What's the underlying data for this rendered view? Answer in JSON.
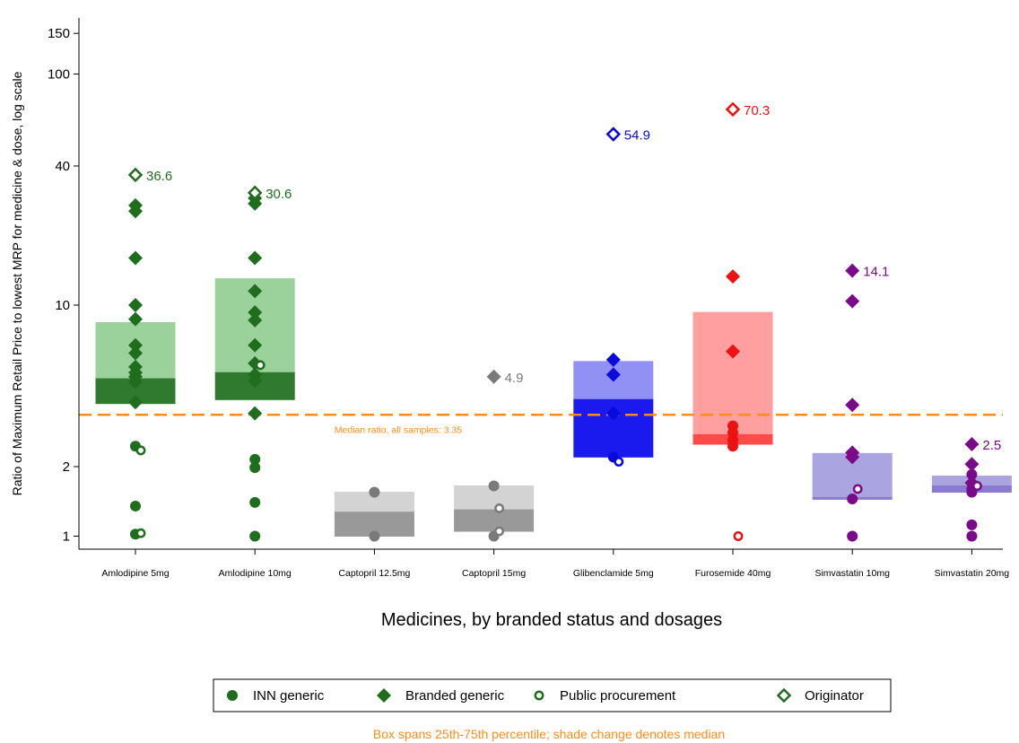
{
  "chart_data": {
    "type": "scatter",
    "scale": "log",
    "ylabel": "Ratio of Maximum Retail Price to lowest MRP for medicine & dose, log scale",
    "xlabel": "Medicines, by branded status and dosages",
    "yticks": [
      1,
      2,
      10,
      40,
      100,
      150
    ],
    "ylim": [
      0.92,
      185
    ],
    "reference_line": {
      "value": 3.35,
      "label": "Median ratio, all samples: 3.35",
      "color": "#ff8c1a"
    },
    "footnote": "Box spans 25th-75th percentile; shade change denotes median",
    "footnote_color": "#ff8c1a",
    "legend": [
      {
        "label": "INN generic",
        "marker": "filled-circle"
      },
      {
        "label": "Branded generic",
        "marker": "filled-diamond"
      },
      {
        "label": "Public procurement",
        "marker": "hollow-circle"
      },
      {
        "label": "Originator",
        "marker": "hollow-diamond"
      }
    ],
    "legend_placement": "bottom",
    "categories": [
      {
        "name": "Amlodipine 5mg",
        "color": "#1e6e1e",
        "light": "#9bd29b",
        "dark": "#2f7a2f",
        "box": {
          "q1": 3.75,
          "median": 4.8,
          "q3": 8.4
        },
        "points": [
          {
            "kind": "inn",
            "value": 2.45
          },
          {
            "kind": "inn",
            "value": 1.35
          },
          {
            "kind": "inn",
            "value": 1.02
          },
          {
            "kind": "branded",
            "value": 27.0
          },
          {
            "kind": "branded",
            "value": 25.5
          },
          {
            "kind": "branded",
            "value": 16.0
          },
          {
            "kind": "branded",
            "value": 10.0
          },
          {
            "kind": "branded",
            "value": 8.7
          },
          {
            "kind": "branded",
            "value": 6.7
          },
          {
            "kind": "branded",
            "value": 6.2
          },
          {
            "kind": "branded",
            "value": 5.4
          },
          {
            "kind": "branded",
            "value": 5.1
          },
          {
            "kind": "branded",
            "value": 4.9
          },
          {
            "kind": "branded",
            "value": 4.65
          },
          {
            "kind": "branded",
            "value": 3.8
          },
          {
            "kind": "public",
            "value": 2.35
          },
          {
            "kind": "public",
            "value": 1.03
          },
          {
            "kind": "originator",
            "value": 36.6,
            "label": "36.6"
          }
        ]
      },
      {
        "name": "Amlodipine 10mg",
        "color": "#1e6e1e",
        "light": "#9bd29b",
        "dark": "#2f7a2f",
        "box": {
          "q1": 3.9,
          "median": 5.1,
          "q3": 13.0
        },
        "points": [
          {
            "kind": "inn",
            "value": 2.15
          },
          {
            "kind": "inn",
            "value": 1.98
          },
          {
            "kind": "inn",
            "value": 1.4
          },
          {
            "kind": "inn",
            "value": 1.0
          },
          {
            "kind": "branded",
            "value": 30.6
          },
          {
            "kind": "branded",
            "value": 29.0
          },
          {
            "kind": "branded",
            "value": 27.5
          },
          {
            "kind": "branded",
            "value": 16.0
          },
          {
            "kind": "branded",
            "value": 11.5
          },
          {
            "kind": "branded",
            "value": 9.3
          },
          {
            "kind": "branded",
            "value": 8.6
          },
          {
            "kind": "branded",
            "value": 6.7
          },
          {
            "kind": "branded",
            "value": 5.6
          },
          {
            "kind": "branded",
            "value": 5.0
          },
          {
            "kind": "branded",
            "value": 4.7
          },
          {
            "kind": "branded",
            "value": 3.4
          },
          {
            "kind": "public",
            "value": 5.5
          },
          {
            "kind": "originator",
            "value": 30.6,
            "label": "30.6"
          }
        ]
      },
      {
        "name": "Captopril 12.5mg",
        "color": "#7a7a7a",
        "light": "#d3d3d3",
        "dark": "#999999",
        "box": {
          "q1": 1.0,
          "median": 1.27,
          "q3": 1.55
        },
        "points": [
          {
            "kind": "inn",
            "value": 1.55
          },
          {
            "kind": "inn",
            "value": 1.0
          }
        ]
      },
      {
        "name": "Captopril 15mg",
        "color": "#7a7a7a",
        "light": "#d3d3d3",
        "dark": "#999999",
        "box": {
          "q1": 1.05,
          "median": 1.3,
          "q3": 1.65
        },
        "points": [
          {
            "kind": "inn",
            "value": 1.65
          },
          {
            "kind": "inn",
            "value": 1.0
          },
          {
            "kind": "branded",
            "value": 4.9,
            "label": "4.9"
          },
          {
            "kind": "public",
            "value": 1.32
          },
          {
            "kind": "public",
            "value": 1.05
          }
        ]
      },
      {
        "name": "Glibenclamide 5mg",
        "color": "#0a0adc",
        "light": "#9090f5",
        "dark": "#1a1aee",
        "box": {
          "q1": 2.2,
          "median": 3.9,
          "q3": 5.7
        },
        "points": [
          {
            "kind": "inn",
            "value": 2.2
          },
          {
            "kind": "branded",
            "value": 5.8
          },
          {
            "kind": "branded",
            "value": 5.0
          },
          {
            "kind": "branded",
            "value": 3.4
          },
          {
            "kind": "public",
            "value": 2.1
          },
          {
            "kind": "originator",
            "value": 54.9,
            "label": "54.9"
          }
        ]
      },
      {
        "name": "Furosemide 40mg",
        "color": "#ee1111",
        "light": "#ff9f9f",
        "dark": "#ff4a4a",
        "box": {
          "q1": 2.5,
          "median": 2.75,
          "q3": 9.3
        },
        "points": [
          {
            "kind": "inn",
            "value": 3.0
          },
          {
            "kind": "inn",
            "value": 2.8
          },
          {
            "kind": "inn",
            "value": 2.6
          },
          {
            "kind": "inn",
            "value": 2.45
          },
          {
            "kind": "branded",
            "value": 13.3
          },
          {
            "kind": "branded",
            "value": 6.3
          },
          {
            "kind": "public",
            "value": 1.0
          },
          {
            "kind": "originator",
            "value": 70.3,
            "label": "70.3"
          }
        ]
      },
      {
        "name": "Simvastatin 10mg",
        "color": "#7a0a8a",
        "light": "#aaa5e0",
        "dark": "#8a7ad0",
        "box": {
          "q1": 1.45,
          "median": 1.47,
          "q3": 2.28
        },
        "points": [
          {
            "kind": "inn",
            "value": 1.45
          },
          {
            "kind": "inn",
            "value": 1.0
          },
          {
            "kind": "branded",
            "value": 14.1,
            "label": "14.1"
          },
          {
            "kind": "branded",
            "value": 10.4
          },
          {
            "kind": "branded",
            "value": 3.7
          },
          {
            "kind": "branded",
            "value": 2.3
          },
          {
            "kind": "branded",
            "value": 2.2
          },
          {
            "kind": "public",
            "value": 1.6
          }
        ]
      },
      {
        "name": "Simvastatin 20mg",
        "color": "#7a0a8a",
        "light": "#aaa5e0",
        "dark": "#8a7ad0",
        "box": {
          "q1": 1.55,
          "median": 1.65,
          "q3": 1.82
        },
        "points": [
          {
            "kind": "inn",
            "value": 1.85
          },
          {
            "kind": "inn",
            "value": 1.6
          },
          {
            "kind": "inn",
            "value": 1.55
          },
          {
            "kind": "inn",
            "value": 1.12
          },
          {
            "kind": "inn",
            "value": 1.0
          },
          {
            "kind": "branded",
            "value": 2.5,
            "label": "2.5"
          },
          {
            "kind": "branded",
            "value": 2.05
          },
          {
            "kind": "branded",
            "value": 1.7
          },
          {
            "kind": "public",
            "value": 1.65
          }
        ]
      }
    ]
  }
}
